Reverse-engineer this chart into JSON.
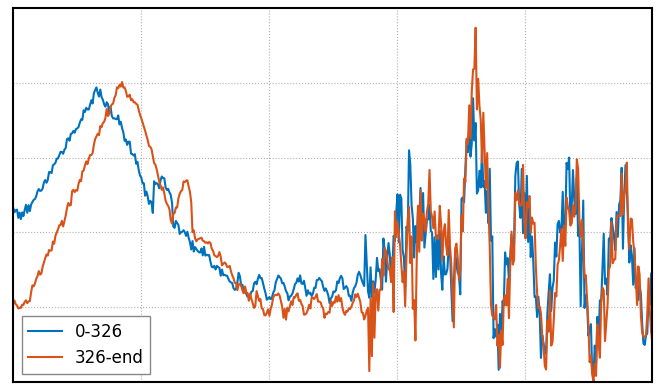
{
  "line1_label": "0-326",
  "line2_label": "326-end",
  "line1_color": "#0072BD",
  "line2_color": "#D95319",
  "background_color": "#ffffff",
  "legend_loc": "lower left",
  "legend_fontsize": 12,
  "linewidth": 1.5,
  "grid_color": "#b0b0b0",
  "grid_style": ":",
  "spine_color": "#000000",
  "figsize": [
    6.59,
    3.9
  ],
  "dpi": 100
}
